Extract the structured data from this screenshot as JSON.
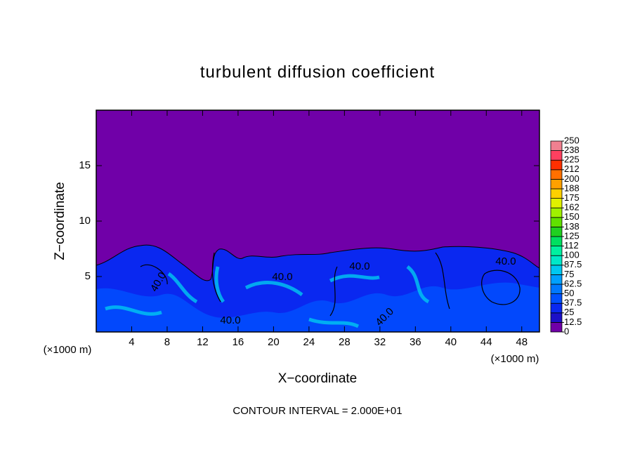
{
  "chart_data": {
    "type": "contour",
    "title": "turbulent diffusion coefficient",
    "xlabel": "X−coordinate",
    "ylabel": "Z−coordinate",
    "x_unit_label": "(×1000 m)",
    "annotation": "CONTOUR INTERVAL = 2.000E+01",
    "xlim": [
      0,
      50
    ],
    "xticks": [
      4,
      8,
      12,
      16,
      20,
      24,
      28,
      32,
      36,
      40,
      44,
      48
    ],
    "ylim": [
      0,
      20
    ],
    "yticks": [
      5,
      10,
      15
    ],
    "contour_labels": [
      "40.0",
      "40.0",
      "40.0",
      "40.0",
      "40.0",
      "40.0"
    ],
    "colorbar": {
      "levels": [
        0,
        12.5,
        25,
        37.5,
        50,
        62.5,
        75,
        87.5,
        100,
        {
          "value": 112.5,
          "label": "112"
        },
        125,
        {
          "value": 137.5,
          "label": "138"
        },
        150,
        {
          "value": 162.5,
          "label": "162"
        },
        175,
        {
          "value": 187.5,
          "label": "188"
        },
        200,
        {
          "value": 212.5,
          "label": "212"
        },
        225,
        {
          "value": 237.5,
          "label": "238"
        },
        250
      ],
      "colors": [
        "#7000a8",
        "#1c10c8",
        "#0a28f0",
        "#0050ff",
        "#0078ff",
        "#00a0ff",
        "#00c8f0",
        "#00e8c8",
        "#00f0a0",
        "#00e060",
        "#20d020",
        "#60e000",
        "#a0f000",
        "#e0f000",
        "#ffd000",
        "#ffa000",
        "#ff7000",
        "#ff3000",
        "#ff4060",
        "#f08090"
      ]
    }
  }
}
